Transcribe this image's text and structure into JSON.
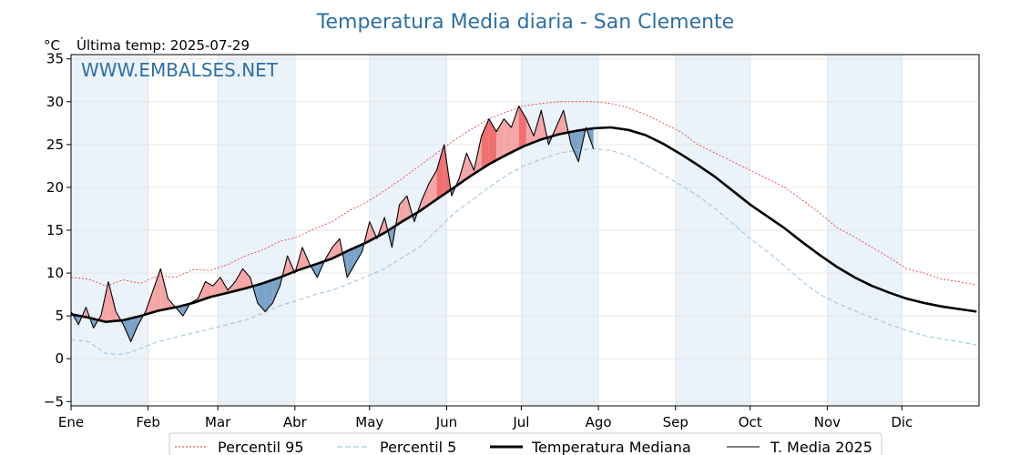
{
  "chart_data": {
    "type": "line",
    "title": "Temperatura Media diaria - San Clemente",
    "unit_label": "°C",
    "last_temp_label": "Última temp: 2025-07-29",
    "watermark": "WWW.EMBALSES.NET",
    "ylim": [
      -5.5,
      35.5
    ],
    "yticks": [
      -5,
      0,
      5,
      10,
      15,
      20,
      25,
      30,
      35
    ],
    "ytick_labels": [
      "−5",
      "0",
      "5",
      "10",
      "15",
      "20",
      "25",
      "30",
      "35"
    ],
    "xlim": [
      1,
      366
    ],
    "month_labels": [
      "Ene",
      "Feb",
      "Mar",
      "Abr",
      "May",
      "Jun",
      "Jul",
      "Ago",
      "Sep",
      "Oct",
      "Nov",
      "Dic"
    ],
    "month_start_days": [
      1,
      32,
      60,
      91,
      121,
      152,
      182,
      213,
      244,
      274,
      305,
      335
    ],
    "grid": true,
    "legend_position": "bottom",
    "colors": {
      "p95": "#e8302a",
      "p5": "#9dcadd",
      "median": "#000000",
      "current": "#000000",
      "above_fill": "#f4a6a6",
      "above_fill_strong": "#f07070",
      "below_fill": "#7ba3c9",
      "below_fill_strong": "#2e62a0",
      "band": "#eaf2fa",
      "title": "#2d6fa6"
    },
    "series": [
      {
        "name": "Percentil 95",
        "style": "dotted",
        "points": [
          [
            1,
            9.5
          ],
          [
            8,
            9.3
          ],
          [
            15,
            8.5
          ],
          [
            22,
            9.2
          ],
          [
            29,
            8.8
          ],
          [
            36,
            9.7
          ],
          [
            43,
            9.5
          ],
          [
            50,
            10.4
          ],
          [
            57,
            10.3
          ],
          [
            64,
            11
          ],
          [
            71,
            12
          ],
          [
            78,
            12.7
          ],
          [
            85,
            13.7
          ],
          [
            92,
            14.2
          ],
          [
            99,
            15.2
          ],
          [
            106,
            16
          ],
          [
            113,
            17.3
          ],
          [
            120,
            18.3
          ],
          [
            127,
            19.6
          ],
          [
            134,
            21
          ],
          [
            141,
            22.5
          ],
          [
            148,
            24
          ],
          [
            155,
            25.5
          ],
          [
            162,
            26.8
          ],
          [
            169,
            28
          ],
          [
            176,
            28.8
          ],
          [
            183,
            29.5
          ],
          [
            190,
            29.8
          ],
          [
            197,
            30
          ],
          [
            204,
            30
          ],
          [
            211,
            30
          ],
          [
            218,
            29.8
          ],
          [
            225,
            29.3
          ],
          [
            232,
            28.5
          ],
          [
            239,
            27.5
          ],
          [
            246,
            26.5
          ],
          [
            253,
            25
          ],
          [
            260,
            24
          ],
          [
            267,
            23
          ],
          [
            274,
            22
          ],
          [
            281,
            21
          ],
          [
            288,
            20
          ],
          [
            295,
            18.5
          ],
          [
            302,
            17
          ],
          [
            309,
            15.3
          ],
          [
            316,
            14.2
          ],
          [
            323,
            13
          ],
          [
            330,
            11.8
          ],
          [
            337,
            10.5
          ],
          [
            344,
            10
          ],
          [
            351,
            9.3
          ],
          [
            358,
            9
          ],
          [
            365,
            8.6
          ]
        ]
      },
      {
        "name": "Percentil 5",
        "style": "dashed",
        "points": [
          [
            1,
            2.2
          ],
          [
            8,
            2
          ],
          [
            15,
            0.6
          ],
          [
            22,
            0.5
          ],
          [
            29,
            1.2
          ],
          [
            36,
            2
          ],
          [
            43,
            2.5
          ],
          [
            50,
            3
          ],
          [
            57,
            3.5
          ],
          [
            64,
            4
          ],
          [
            71,
            4.5
          ],
          [
            78,
            5.3
          ],
          [
            85,
            6.2
          ],
          [
            92,
            6.8
          ],
          [
            99,
            7.5
          ],
          [
            106,
            8
          ],
          [
            113,
            8.8
          ],
          [
            120,
            9.6
          ],
          [
            127,
            10.5
          ],
          [
            134,
            11.8
          ],
          [
            141,
            13
          ],
          [
            148,
            15
          ],
          [
            155,
            17
          ],
          [
            162,
            18.5
          ],
          [
            169,
            20
          ],
          [
            176,
            21.4
          ],
          [
            183,
            22.5
          ],
          [
            190,
            23.3
          ],
          [
            197,
            24
          ],
          [
            204,
            24.3
          ],
          [
            211,
            24.5
          ],
          [
            218,
            24.3
          ],
          [
            225,
            23.7
          ],
          [
            232,
            22.6
          ],
          [
            239,
            21.5
          ],
          [
            246,
            20.3
          ],
          [
            253,
            19
          ],
          [
            260,
            17.5
          ],
          [
            267,
            15.8
          ],
          [
            274,
            14
          ],
          [
            281,
            12.5
          ],
          [
            288,
            10.8
          ],
          [
            295,
            9
          ],
          [
            302,
            7.5
          ],
          [
            309,
            6.5
          ],
          [
            316,
            5.6
          ],
          [
            323,
            4.8
          ],
          [
            330,
            4
          ],
          [
            337,
            3.3
          ],
          [
            344,
            2.7
          ],
          [
            351,
            2.3
          ],
          [
            358,
            2
          ],
          [
            365,
            1.6
          ]
        ]
      },
      {
        "name": "Temperatura Mediana",
        "style": "solid-thick",
        "points": [
          [
            1,
            5.2
          ],
          [
            8,
            4.8
          ],
          [
            15,
            4.3
          ],
          [
            22,
            4.5
          ],
          [
            29,
            5
          ],
          [
            36,
            5.6
          ],
          [
            43,
            6
          ],
          [
            50,
            6.5
          ],
          [
            57,
            7.2
          ],
          [
            64,
            7.7
          ],
          [
            71,
            8.2
          ],
          [
            78,
            8.8
          ],
          [
            85,
            9.5
          ],
          [
            92,
            10.3
          ],
          [
            99,
            11
          ],
          [
            106,
            11.7
          ],
          [
            113,
            12.7
          ],
          [
            120,
            13.6
          ],
          [
            127,
            14.7
          ],
          [
            134,
            16
          ],
          [
            141,
            17.2
          ],
          [
            148,
            18.6
          ],
          [
            155,
            20
          ],
          [
            162,
            21.4
          ],
          [
            169,
            22.7
          ],
          [
            176,
            23.8
          ],
          [
            183,
            24.8
          ],
          [
            190,
            25.6
          ],
          [
            197,
            26.2
          ],
          [
            204,
            26.6
          ],
          [
            211,
            26.9
          ],
          [
            218,
            27
          ],
          [
            225,
            26.7
          ],
          [
            232,
            26.1
          ],
          [
            239,
            25.1
          ],
          [
            246,
            23.9
          ],
          [
            253,
            22.6
          ],
          [
            260,
            21.2
          ],
          [
            267,
            19.6
          ],
          [
            274,
            18
          ],
          [
            281,
            16.6
          ],
          [
            288,
            15.2
          ],
          [
            295,
            13.6
          ],
          [
            302,
            12.1
          ],
          [
            309,
            10.7
          ],
          [
            316,
            9.5
          ],
          [
            323,
            8.5
          ],
          [
            330,
            7.7
          ],
          [
            337,
            7
          ],
          [
            344,
            6.5
          ],
          [
            351,
            6.1
          ],
          [
            358,
            5.8
          ],
          [
            365,
            5.5
          ]
        ]
      },
      {
        "name": "T. Media 2025",
        "style": "solid-thin",
        "points": [
          [
            1,
            5.5
          ],
          [
            4,
            4
          ],
          [
            7,
            6
          ],
          [
            10,
            3.6
          ],
          [
            13,
            5
          ],
          [
            16,
            9
          ],
          [
            19,
            5.5
          ],
          [
            22,
            4
          ],
          [
            25,
            2
          ],
          [
            28,
            4
          ],
          [
            31,
            5.5
          ],
          [
            34,
            8
          ],
          [
            37,
            10.5
          ],
          [
            40,
            7
          ],
          [
            43,
            6
          ],
          [
            46,
            5
          ],
          [
            49,
            6.5
          ],
          [
            52,
            7
          ],
          [
            55,
            9
          ],
          [
            58,
            8.5
          ],
          [
            61,
            9.5
          ],
          [
            64,
            8
          ],
          [
            67,
            9
          ],
          [
            70,
            10.5
          ],
          [
            73,
            9.5
          ],
          [
            76,
            6.5
          ],
          [
            79,
            5.5
          ],
          [
            82,
            6.5
          ],
          [
            85,
            8.5
          ],
          [
            88,
            12
          ],
          [
            91,
            10
          ],
          [
            94,
            13
          ],
          [
            97,
            11
          ],
          [
            100,
            9.5
          ],
          [
            103,
            11.5
          ],
          [
            106,
            13
          ],
          [
            109,
            14
          ],
          [
            112,
            9.5
          ],
          [
            115,
            11
          ],
          [
            118,
            12.5
          ],
          [
            121,
            16
          ],
          [
            124,
            14
          ],
          [
            127,
            16.5
          ],
          [
            130,
            13
          ],
          [
            133,
            18
          ],
          [
            136,
            19
          ],
          [
            139,
            16
          ],
          [
            142,
            18.5
          ],
          [
            145,
            20.5
          ],
          [
            148,
            22
          ],
          [
            151,
            25
          ],
          [
            154,
            19
          ],
          [
            157,
            21
          ],
          [
            160,
            24
          ],
          [
            163,
            22
          ],
          [
            166,
            26
          ],
          [
            169,
            28
          ],
          [
            172,
            26.5
          ],
          [
            175,
            28
          ],
          [
            178,
            27
          ],
          [
            181,
            29.5
          ],
          [
            184,
            28
          ],
          [
            187,
            26
          ],
          [
            190,
            29
          ],
          [
            193,
            25
          ],
          [
            196,
            27
          ],
          [
            199,
            29
          ],
          [
            202,
            25
          ],
          [
            205,
            23
          ],
          [
            208,
            27
          ],
          [
            211,
            24.5
          ]
        ]
      }
    ]
  }
}
